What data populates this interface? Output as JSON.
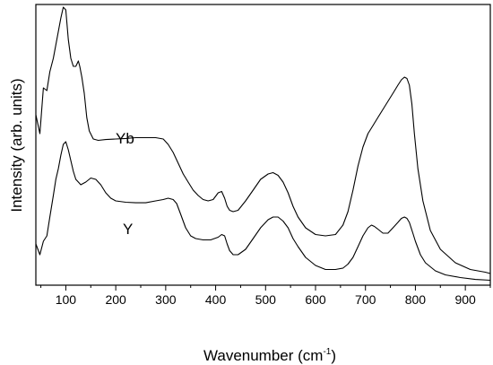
{
  "chart_data": {
    "type": "line",
    "xlabel": "Wavenumber (cm",
    "xlabel_sup": "-1",
    "xlabel_suffix": ")",
    "ylabel": "Intensity (arb. units)",
    "xlim": [
      40,
      950
    ],
    "ylim": [
      0,
      1
    ],
    "grid": false,
    "y_ticks_labeled": false,
    "x_ticks": [
      100,
      200,
      300,
      400,
      500,
      600,
      700,
      800,
      900
    ],
    "series": [
      {
        "name": "Yb",
        "x": [
          40,
          48,
          55,
          62,
          68,
          75,
          80,
          85,
          90,
          95,
          100,
          105,
          110,
          115,
          120,
          125,
          128,
          132,
          137,
          142,
          147,
          155,
          165,
          180,
          200,
          220,
          240,
          260,
          280,
          295,
          305,
          315,
          325,
          335,
          345,
          355,
          365,
          375,
          385,
          395,
          405,
          412,
          418,
          423,
          428,
          435,
          445,
          460,
          475,
          490,
          505,
          515,
          525,
          535,
          545,
          555,
          565,
          580,
          600,
          620,
          640,
          655,
          665,
          675,
          685,
          695,
          705,
          715,
          725,
          735,
          745,
          755,
          765,
          772,
          778,
          783,
          788,
          793,
          798,
          805,
          815,
          830,
          850,
          880,
          910,
          940,
          950
        ],
        "y": [
          0.62,
          0.55,
          0.72,
          0.71,
          0.78,
          0.83,
          0.88,
          0.93,
          0.98,
          1.02,
          1.01,
          0.9,
          0.83,
          0.8,
          0.8,
          0.82,
          0.8,
          0.76,
          0.7,
          0.61,
          0.56,
          0.53,
          0.525,
          0.528,
          0.53,
          0.532,
          0.535,
          0.535,
          0.535,
          0.53,
          0.51,
          0.48,
          0.44,
          0.4,
          0.37,
          0.34,
          0.32,
          0.305,
          0.3,
          0.305,
          0.33,
          0.335,
          0.31,
          0.28,
          0.265,
          0.26,
          0.265,
          0.3,
          0.34,
          0.38,
          0.4,
          0.405,
          0.395,
          0.37,
          0.33,
          0.28,
          0.24,
          0.2,
          0.175,
          0.17,
          0.175,
          0.21,
          0.26,
          0.34,
          0.43,
          0.5,
          0.55,
          0.58,
          0.61,
          0.64,
          0.67,
          0.7,
          0.73,
          0.75,
          0.76,
          0.755,
          0.73,
          0.66,
          0.55,
          0.42,
          0.3,
          0.19,
          0.12,
          0.07,
          0.045,
          0.035,
          0.03
        ]
      },
      {
        "name": "Y",
        "x": [
          40,
          48,
          55,
          62,
          68,
          75,
          80,
          85,
          90,
          95,
          100,
          105,
          110,
          115,
          120,
          125,
          130,
          140,
          150,
          160,
          170,
          180,
          190,
          200,
          220,
          240,
          260,
          280,
          295,
          305,
          315,
          322,
          330,
          340,
          350,
          360,
          375,
          390,
          405,
          412,
          418,
          423,
          428,
          435,
          445,
          460,
          475,
          490,
          505,
          515,
          525,
          535,
          545,
          555,
          565,
          580,
          600,
          620,
          640,
          655,
          665,
          675,
          685,
          695,
          705,
          712,
          718,
          725,
          735,
          745,
          755,
          765,
          772,
          778,
          783,
          788,
          795,
          800,
          810,
          820,
          840,
          860,
          890,
          920,
          950
        ],
        "y": [
          0.14,
          0.1,
          0.15,
          0.17,
          0.24,
          0.32,
          0.38,
          0.42,
          0.47,
          0.51,
          0.52,
          0.49,
          0.45,
          0.41,
          0.38,
          0.37,
          0.36,
          0.37,
          0.385,
          0.38,
          0.36,
          0.33,
          0.31,
          0.3,
          0.295,
          0.293,
          0.293,
          0.3,
          0.305,
          0.31,
          0.305,
          0.29,
          0.25,
          0.2,
          0.17,
          0.16,
          0.155,
          0.155,
          0.165,
          0.175,
          0.17,
          0.14,
          0.115,
          0.1,
          0.1,
          0.12,
          0.16,
          0.2,
          0.23,
          0.24,
          0.24,
          0.225,
          0.2,
          0.16,
          0.13,
          0.09,
          0.06,
          0.045,
          0.045,
          0.05,
          0.065,
          0.09,
          0.13,
          0.17,
          0.2,
          0.21,
          0.205,
          0.195,
          0.18,
          0.18,
          0.2,
          0.22,
          0.235,
          0.24,
          0.235,
          0.22,
          0.18,
          0.15,
          0.1,
          0.07,
          0.04,
          0.025,
          0.015,
          0.008,
          0.005
        ]
      }
    ]
  }
}
